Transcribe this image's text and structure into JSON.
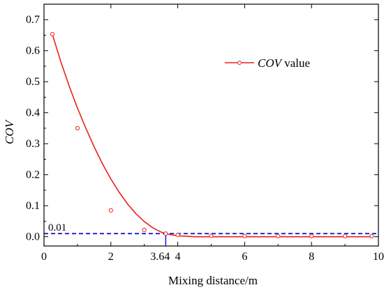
{
  "chart_data": {
    "type": "scatter",
    "xlabel": "Mixing distance/m",
    "ylabel": "COV",
    "xlim": [
      0,
      10
    ],
    "ylim": [
      -0.03,
      0.75
    ],
    "x_ticks": [
      0,
      2,
      4,
      6,
      8,
      10
    ],
    "x_tick_labels": [
      "0",
      "2",
      "4",
      "6",
      "8",
      "10"
    ],
    "y_ticks": [
      0.0,
      0.1,
      0.2,
      0.3,
      0.4,
      0.5,
      0.6,
      0.7
    ],
    "y_tick_labels": [
      "0.0",
      "0.1",
      "0.2",
      "0.3",
      "0.4",
      "0.5",
      "0.6",
      "0.7"
    ],
    "grid": false,
    "legend_position": "top-right",
    "series": [
      {
        "name": "COV value",
        "name_italic_part": "COV",
        "name_plain_part": " value",
        "color": "#e8201e",
        "marker": "open-circle",
        "x": [
          0.25,
          1.0,
          2.0,
          3.0,
          3.64,
          4.0,
          5.0,
          6.0,
          7.0,
          8.0,
          9.0,
          9.8
        ],
        "y": [
          0.653,
          0.35,
          0.085,
          0.022,
          0.01,
          0.006,
          0.003,
          0.002,
          0.002,
          0.002,
          0.002,
          0.002
        ]
      }
    ],
    "fit_curve": {
      "color": "#e8201e",
      "x": [
        0.25,
        0.5,
        0.75,
        1.0,
        1.25,
        1.5,
        1.75,
        2.0,
        2.25,
        2.5,
        2.75,
        3.0,
        3.25,
        3.5,
        3.75,
        4.0,
        4.5,
        5.0,
        6.0,
        7.0,
        8.0,
        9.0,
        9.8
      ],
      "y": [
        0.653,
        0.565,
        0.487,
        0.415,
        0.35,
        0.29,
        0.235,
        0.186,
        0.143,
        0.105,
        0.074,
        0.049,
        0.029,
        0.015,
        0.007,
        0.003,
        0.0,
        0.0,
        0.0,
        0.0,
        0.0,
        0.0,
        0.0
      ]
    },
    "reference_lines": [
      {
        "orientation": "horizontal",
        "y": 0.01,
        "color": "#1a1ad6",
        "style": "dashed",
        "label": "0.01"
      },
      {
        "orientation": "vertical",
        "x": 3.64,
        "y_top": 0.01,
        "color": "#1a1ad6",
        "style": "solid",
        "label": "3.64"
      }
    ]
  }
}
